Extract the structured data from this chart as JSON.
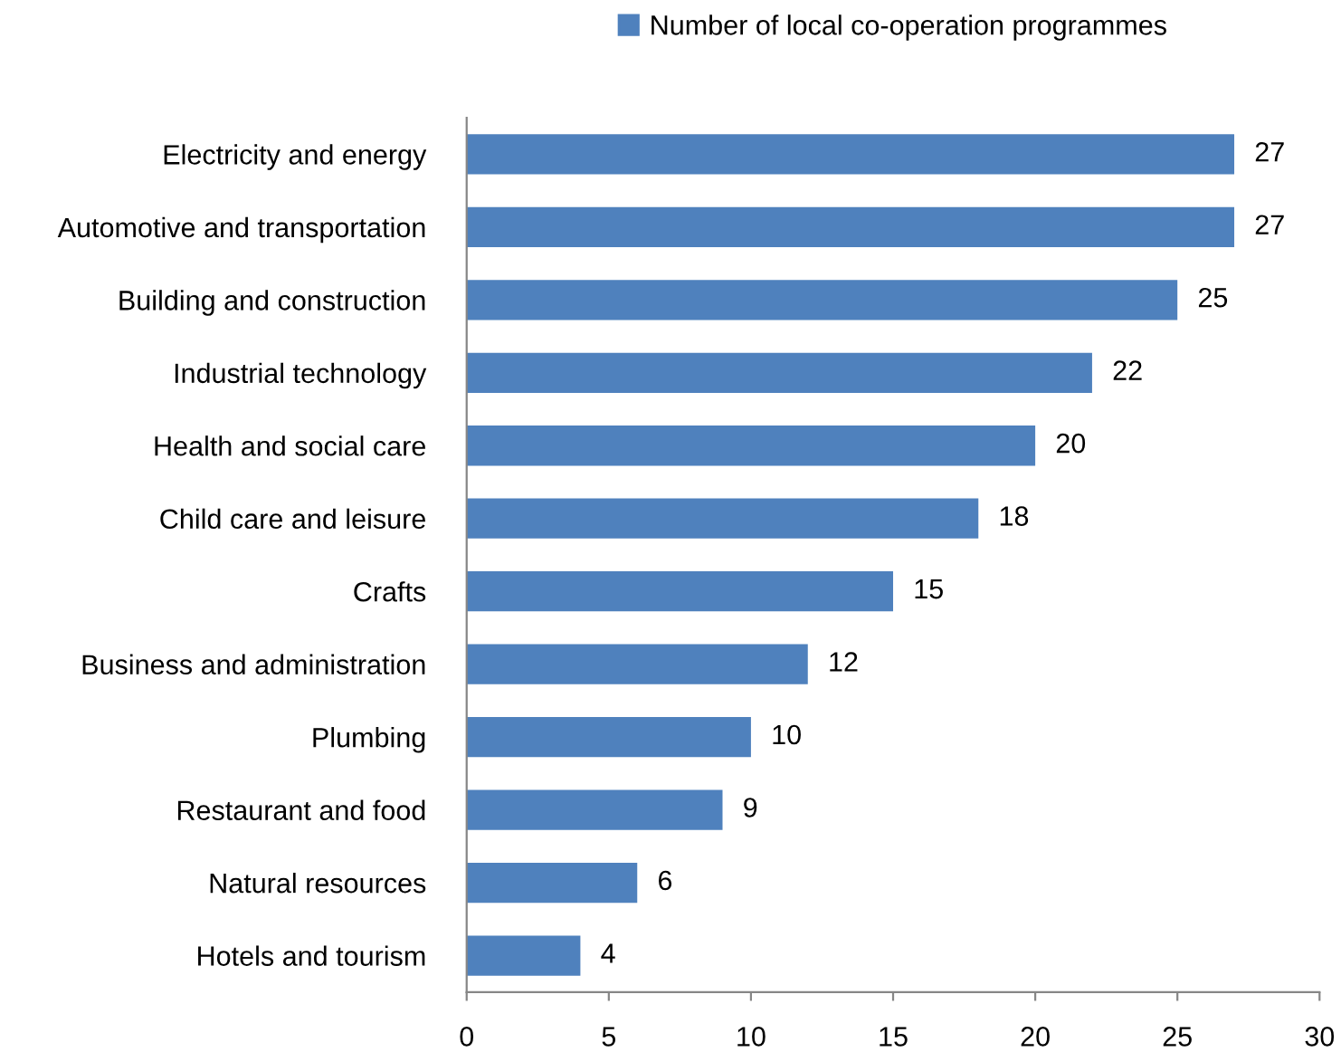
{
  "chart_data": {
    "type": "bar",
    "orientation": "horizontal",
    "categories": [
      "Electricity and energy",
      "Automotive and transportation",
      "Building and construction",
      "Industrial technology",
      "Health and social care",
      "Child care and leisure",
      "Crafts",
      "Business and administration",
      "Plumbing",
      "Restaurant and food",
      "Natural resources",
      "Hotels and tourism"
    ],
    "series": [
      {
        "name": "Number of local co-operation programmes",
        "color": "#4f81bd",
        "values": [
          27,
          27,
          25,
          22,
          20,
          18,
          15,
          12,
          10,
          9,
          6,
          4
        ]
      }
    ],
    "xlim": [
      0,
      30
    ],
    "xticks": [
      0,
      5,
      10,
      15,
      20,
      25,
      30
    ],
    "data_labels": true,
    "legend": "top",
    "grid": false
  }
}
